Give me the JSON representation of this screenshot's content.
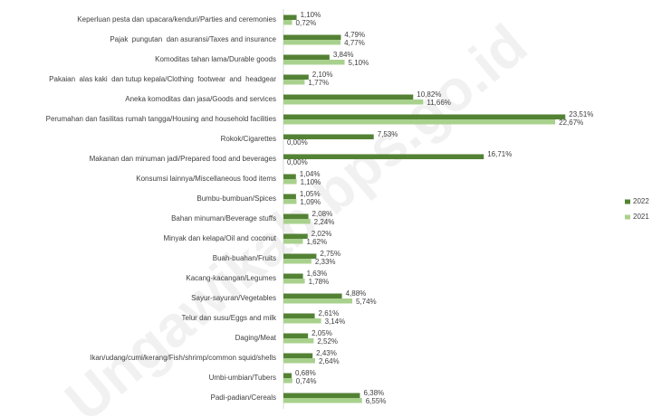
{
  "chart_data": {
    "type": "bar",
    "orientation": "horizontal",
    "categories": [
      "Keperluan pesta dan upacara/kenduri/Parties and ceremonies",
      "Pajak  pungutan  dan asuransi/Taxes and insurance",
      "Komoditas tahan lama/Durable goods",
      "Pakaian  alas kaki  dan tutup kepala/Clothing  footwear  and  headgear",
      "Aneka komoditas dan jasa/Goods and services",
      "Perumahan dan fasilitas rumah tangga/Housing and household facilities",
      "Rokok/Cigarettes",
      "Makanan dan minuman jadi/Prepared food and beverages",
      "Konsumsi lainnya/Miscellaneous food items",
      "Bumbu-bumbuan/Spices",
      "Bahan minuman/Beverage stuffs",
      "Minyak dan kelapa/Oil and coconut",
      "Buah-buahan/Fruits",
      "Kacang-kacangan/Legumes",
      "Sayur-sayuran/Vegetables",
      "Telur dan susu/Eggs and milk",
      "Daging/Meat",
      "Ikan/udang/cumi/kerang/Fish/shrimp/common squid/shells",
      "Umbi-umbian/Tubers",
      "Padi-padian/Cereals"
    ],
    "series": [
      {
        "name": "2022",
        "color": "#548235",
        "values": [
          1.1,
          4.79,
          3.84,
          2.1,
          10.82,
          23.51,
          7.53,
          16.71,
          1.04,
          1.05,
          2.08,
          2.02,
          2.75,
          1.63,
          4.88,
          2.61,
          2.05,
          2.43,
          0.68,
          6.38
        ],
        "value_labels": [
          "1,10%",
          "4,79%",
          "3,84%",
          "2,10%",
          "10,82%",
          "23,51%",
          "7,53%",
          "16,71%",
          "1,04%",
          "1,05%",
          "2,08%",
          "2,02%",
          "2,75%",
          "1,63%",
          "4,88%",
          "2,61%",
          "2,05%",
          "2,43%",
          "0,68%",
          "6,38%"
        ]
      },
      {
        "name": "2021",
        "color": "#a9d18e",
        "values": [
          0.72,
          4.77,
          5.1,
          1.77,
          11.66,
          22.67,
          0.0,
          0.0,
          1.1,
          1.09,
          2.24,
          1.62,
          2.33,
          1.78,
          5.74,
          3.14,
          2.52,
          2.64,
          0.74,
          6.55
        ],
        "value_labels": [
          "0,72%",
          "4,77%",
          "5,10%",
          "1,77%",
          "11,66%",
          "22,67%",
          "0,00%",
          "0,00%",
          "1,10%",
          "1,09%",
          "2,24%",
          "1,62%",
          "2,33%",
          "1,78%",
          "5,74%",
          "3,14%",
          "2,52%",
          "2,64%",
          "0,74%",
          "6,55%"
        ]
      }
    ],
    "xlim": [
      0,
      25
    ],
    "legend": "right",
    "watermark": "Ungawikab.bps.go.id"
  }
}
